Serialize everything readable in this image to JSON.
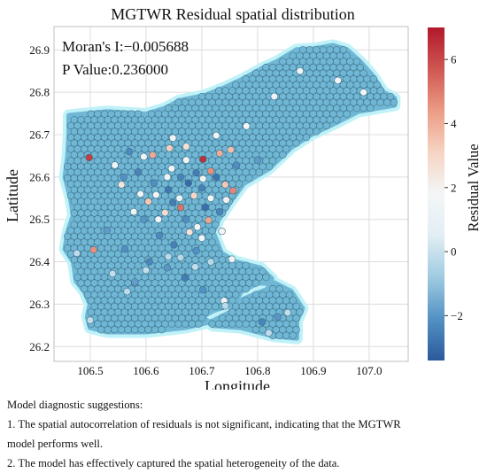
{
  "chart_data": {
    "type": "scatter",
    "title": "MGTWR Residual spatial distribution",
    "xlabel": "Longitude",
    "ylabel": "Latitude",
    "xlim": [
      106.435,
      107.07
    ],
    "ylim": [
      26.165,
      26.955
    ],
    "xticks": [
      "106.5",
      "106.6",
      "106.7",
      "106.8",
      "106.9",
      "107.0"
    ],
    "xtick_values": [
      106.5,
      106.6,
      106.7,
      106.8,
      106.9,
      107.0
    ],
    "yticks": [
      "26.2",
      "26.3",
      "26.4",
      "26.5",
      "26.6",
      "26.7",
      "26.8",
      "26.9"
    ],
    "ytick_values": [
      26.2,
      26.3,
      26.4,
      26.5,
      26.6,
      26.7,
      26.8,
      26.9
    ],
    "grid": true,
    "colorbar": {
      "label": "Residual Value",
      "range": [
        -3.4,
        7.0
      ],
      "ticks": [
        "−2",
        "0",
        "2",
        "4",
        "6"
      ],
      "tick_values": [
        -2,
        0,
        2,
        4,
        6
      ],
      "colormap": [
        "#2b5a9b",
        "#5391c4",
        "#9fcbe1",
        "#e1eef4",
        "#f3f6f7",
        "#f6d4c3",
        "#eb9c84",
        "#cf5752",
        "#b2182b"
      ]
    },
    "annotations": [
      "Moran's I:−0.005688",
      "P Value:0.236000"
    ],
    "point_style": {
      "fill": "#6fb7d4",
      "edge": "#3f6f88",
      "halo": "#bff2f8"
    },
    "series": [
      {
        "marker": "circle",
        "region_outline": [
          [
            106.462,
            26.745
          ],
          [
            106.53,
            26.754
          ],
          [
            106.6,
            26.748
          ],
          [
            106.635,
            26.762
          ],
          [
            106.66,
            26.78
          ],
          [
            106.705,
            26.792
          ],
          [
            106.74,
            26.81
          ],
          [
            106.775,
            26.832
          ],
          [
            106.81,
            26.857
          ],
          [
            106.835,
            26.872
          ],
          [
            106.87,
            26.9
          ],
          [
            106.9,
            26.902
          ],
          [
            106.935,
            26.91
          ],
          [
            106.96,
            26.9
          ],
          [
            106.985,
            26.87
          ],
          [
            107.005,
            26.84
          ],
          [
            107.025,
            26.8
          ],
          [
            107.045,
            26.785
          ],
          [
            107.045,
            26.77
          ],
          [
            106.98,
            26.755
          ],
          [
            106.94,
            26.728
          ],
          [
            106.895,
            26.7
          ],
          [
            106.86,
            26.67
          ],
          [
            106.82,
            26.62
          ],
          [
            106.775,
            26.585
          ],
          [
            106.75,
            26.54
          ],
          [
            106.73,
            26.5
          ],
          [
            106.72,
            26.47
          ],
          [
            106.735,
            26.42
          ],
          [
            106.76,
            26.4
          ],
          [
            106.805,
            26.385
          ],
          [
            106.825,
            26.36
          ],
          [
            106.818,
            26.335
          ],
          [
            106.79,
            26.32
          ],
          [
            106.755,
            26.3
          ],
          [
            106.72,
            26.285
          ],
          [
            106.7,
            26.27
          ],
          [
            106.72,
            26.25
          ],
          [
            106.77,
            26.245
          ],
          [
            106.83,
            26.225
          ],
          [
            106.87,
            26.22
          ],
          [
            106.87,
            26.26
          ],
          [
            106.88,
            26.29
          ],
          [
            106.86,
            26.33
          ],
          [
            106.83,
            26.35
          ],
          [
            106.8,
            26.35
          ],
          [
            106.77,
            26.33
          ],
          [
            106.75,
            26.28
          ],
          [
            106.72,
            26.26
          ],
          [
            106.67,
            26.245
          ],
          [
            106.6,
            26.235
          ],
          [
            106.53,
            26.235
          ],
          [
            106.5,
            26.245
          ],
          [
            106.495,
            26.27
          ],
          [
            106.5,
            26.3
          ],
          [
            106.49,
            26.33
          ],
          [
            106.475,
            26.355
          ],
          [
            106.47,
            26.4
          ],
          [
            106.455,
            26.43
          ],
          [
            106.46,
            26.47
          ],
          [
            106.47,
            26.51
          ],
          [
            106.465,
            26.55
          ],
          [
            106.455,
            26.6
          ],
          [
            106.46,
            26.65
          ],
          [
            106.462,
            26.7
          ]
        ],
        "points": [
          {
            "x": 106.498,
            "y": 26.646,
            "v": 6.2
          },
          {
            "x": 106.612,
            "y": 26.652,
            "v": 4.1
          },
          {
            "x": 106.642,
            "y": 26.668,
            "v": 3.2
          },
          {
            "x": 106.672,
            "y": 26.672,
            "v": 2.6
          },
          {
            "x": 106.702,
            "y": 26.642,
            "v": 6.5
          },
          {
            "x": 106.732,
            "y": 26.656,
            "v": 4.0
          },
          {
            "x": 106.752,
            "y": 26.664,
            "v": 3.6
          },
          {
            "x": 106.716,
            "y": 26.614,
            "v": 4.6
          },
          {
            "x": 106.742,
            "y": 26.582,
            "v": 3.4
          },
          {
            "x": 106.756,
            "y": 26.568,
            "v": 4.8
          },
          {
            "x": 106.686,
            "y": 26.556,
            "v": 3.0
          },
          {
            "x": 106.662,
            "y": 26.528,
            "v": 5.2
          },
          {
            "x": 106.634,
            "y": 26.516,
            "v": 2.8
          },
          {
            "x": 106.604,
            "y": 26.542,
            "v": 3.4
          },
          {
            "x": 106.712,
            "y": 26.498,
            "v": 4.2
          },
          {
            "x": 106.678,
            "y": 26.47,
            "v": 2.6
          },
          {
            "x": 106.506,
            "y": 26.428,
            "v": 4.6
          },
          {
            "x": 106.556,
            "y": 26.582,
            "v": 2.4
          },
          {
            "x": 106.69,
            "y": 26.61,
            "v": -2.6
          },
          {
            "x": 106.726,
            "y": 26.6,
            "v": -2.8
          },
          {
            "x": 106.662,
            "y": 26.6,
            "v": -2.4
          },
          {
            "x": 106.676,
            "y": 26.586,
            "v": -3.0
          },
          {
            "x": 106.7,
            "y": 26.574,
            "v": -2.5
          },
          {
            "x": 106.64,
            "y": 26.57,
            "v": -2.7
          },
          {
            "x": 106.614,
            "y": 26.586,
            "v": -2.2
          },
          {
            "x": 106.586,
            "y": 26.612,
            "v": -2.4
          },
          {
            "x": 106.56,
            "y": 26.6,
            "v": -2.1
          },
          {
            "x": 106.706,
            "y": 26.528,
            "v": -2.9
          },
          {
            "x": 106.732,
            "y": 26.518,
            "v": -2.4
          },
          {
            "x": 106.648,
            "y": 26.54,
            "v": -2.6
          },
          {
            "x": 106.672,
            "y": 26.5,
            "v": -2.2
          },
          {
            "x": 106.596,
            "y": 26.5,
            "v": -2.0
          },
          {
            "x": 106.624,
            "y": 26.462,
            "v": -2.3
          },
          {
            "x": 106.65,
            "y": 26.44,
            "v": -2.5
          },
          {
            "x": 106.69,
            "y": 26.426,
            "v": -2.1
          },
          {
            "x": 106.562,
            "y": 26.43,
            "v": -2.2
          },
          {
            "x": 106.53,
            "y": 26.474,
            "v": -1.9
          },
          {
            "x": 106.606,
            "y": 26.4,
            "v": -2.4
          },
          {
            "x": 106.638,
            "y": 26.386,
            "v": -2.0
          },
          {
            "x": 106.67,
            "y": 26.362,
            "v": -2.6
          },
          {
            "x": 106.702,
            "y": 26.334,
            "v": -2.1
          },
          {
            "x": 106.58,
            "y": 26.352,
            "v": -1.8
          },
          {
            "x": 106.57,
            "y": 26.66,
            "v": -2.3
          },
          {
            "x": 106.808,
            "y": 26.258,
            "v": -2.4
          },
          {
            "x": 106.836,
            "y": 26.27,
            "v": -2.0
          },
          {
            "x": 106.762,
            "y": 26.628,
            "v": -2.2
          },
          {
            "x": 106.8,
            "y": 26.64,
            "v": -1.9
          },
          {
            "x": 106.672,
            "y": 26.64,
            "v": 1.8
          },
          {
            "x": 106.646,
            "y": 26.62,
            "v": 1.6
          },
          {
            "x": 106.702,
            "y": 26.596,
            "v": 1.9
          },
          {
            "x": 106.618,
            "y": 26.558,
            "v": 1.7
          },
          {
            "x": 106.66,
            "y": 26.55,
            "v": 1.5
          },
          {
            "x": 106.716,
            "y": 26.55,
            "v": 1.8
          },
          {
            "x": 106.744,
            "y": 26.546,
            "v": 2.0
          },
          {
            "x": 106.638,
            "y": 26.6,
            "v": 1.4
          },
          {
            "x": 106.59,
            "y": 26.56,
            "v": 1.6
          },
          {
            "x": 106.622,
            "y": 26.5,
            "v": 1.7
          },
          {
            "x": 106.692,
            "y": 26.482,
            "v": 1.9
          },
          {
            "x": 106.578,
            "y": 26.518,
            "v": 1.4
          },
          {
            "x": 106.7,
            "y": 26.456,
            "v": 1.6
          },
          {
            "x": 106.736,
            "y": 26.472,
            "v": 1.5
          },
          {
            "x": 106.726,
            "y": 26.698,
            "v": 1.6
          },
          {
            "x": 106.78,
            "y": 26.72,
            "v": 1.8
          },
          {
            "x": 106.648,
            "y": 26.692,
            "v": 1.7
          },
          {
            "x": 106.544,
            "y": 26.628,
            "v": 1.5
          },
          {
            "x": 106.596,
            "y": 26.648,
            "v": 1.6
          },
          {
            "x": 106.876,
            "y": 26.85,
            "v": 1.7
          },
          {
            "x": 106.944,
            "y": 26.828,
            "v": 1.8
          },
          {
            "x": 106.83,
            "y": 26.79,
            "v": 1.5
          },
          {
            "x": 106.99,
            "y": 26.8,
            "v": 1.6
          },
          {
            "x": 106.754,
            "y": 26.406,
            "v": 1.5
          },
          {
            "x": 106.74,
            "y": 26.308,
            "v": 1.7
          },
          {
            "x": 106.64,
            "y": 26.412,
            "v": -0.2
          },
          {
            "x": 106.6,
            "y": 26.38,
            "v": -0.1
          },
          {
            "x": 106.662,
            "y": 26.41,
            "v": -0.3
          },
          {
            "x": 106.566,
            "y": 26.33,
            "v": -0.2
          },
          {
            "x": 106.54,
            "y": 26.372,
            "v": -0.1
          },
          {
            "x": 106.742,
            "y": 26.296,
            "v": -0.2
          },
          {
            "x": 106.854,
            "y": 26.28,
            "v": -0.1
          },
          {
            "x": 106.82,
            "y": 26.232,
            "v": -0.2
          },
          {
            "x": 106.476,
            "y": 26.42,
            "v": -0.2
          },
          {
            "x": 106.5,
            "y": 26.262,
            "v": -0.1
          },
          {
            "x": 106.716,
            "y": 26.4,
            "v": -0.3
          },
          {
            "x": 106.688,
            "y": 26.388,
            "v": -0.1
          }
        ]
      }
    ]
  },
  "notes": {
    "heading": "Model diagnostic suggestions:",
    "line1": "1. The spatial autocorrelation of residuals is not significant, indicating that the MGTWR",
    "line1b": "model performs well.",
    "line2": "2. The model has effectively captured the spatial heterogeneity of the data."
  }
}
